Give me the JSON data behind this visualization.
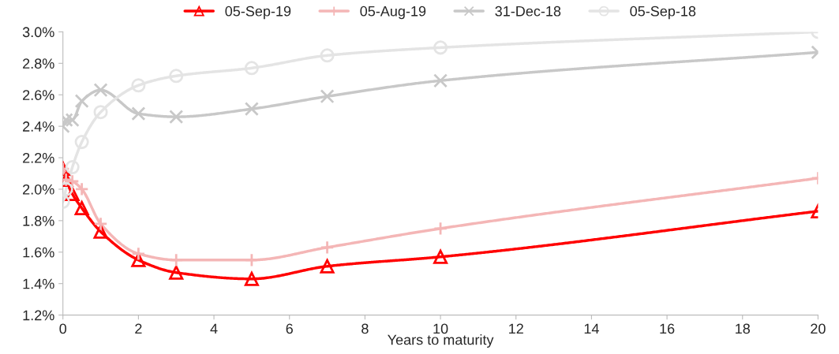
{
  "chart_data": {
    "type": "line",
    "xlabel": "Years to maturity",
    "legend": "top",
    "grid": false,
    "xlim": [
      0,
      20
    ],
    "xticks": [
      0,
      2,
      4,
      6,
      8,
      10,
      12,
      14,
      16,
      18,
      20
    ],
    "ylim": [
      1.2,
      3.0
    ],
    "yticks": [
      {
        "value": 1.2,
        "label": "1.2%"
      },
      {
        "value": 1.4,
        "label": "1.4%"
      },
      {
        "value": 1.6,
        "label": "1.6%"
      },
      {
        "value": 1.8,
        "label": "1.8%"
      },
      {
        "value": 2.0,
        "label": "2.0%"
      },
      {
        "value": 2.2,
        "label": "2.2%"
      },
      {
        "value": 2.4,
        "label": "2.4%"
      },
      {
        "value": 2.6,
        "label": "2.6%"
      },
      {
        "value": 2.8,
        "label": "2.8%"
      },
      {
        "value": 3.0,
        "label": "3.0%"
      }
    ],
    "x": [
      0,
      0.083,
      0.25,
      0.5,
      1,
      2,
      3,
      5,
      7,
      10,
      20
    ],
    "series": [
      {
        "name": "05-Sep-19",
        "color": "#ff0000",
        "marker": "triangle",
        "values": [
          2.13,
          2.06,
          1.97,
          1.88,
          1.73,
          1.55,
          1.47,
          1.43,
          1.51,
          1.57,
          1.86
        ]
      },
      {
        "name": "05-Aug-19",
        "color": "#f4b6b6",
        "marker": "cross",
        "values": [
          2.13,
          2.06,
          2.05,
          2.0,
          1.78,
          1.59,
          1.55,
          1.55,
          1.63,
          1.75,
          2.07
        ]
      },
      {
        "name": "31-Dec-18",
        "color": "#c8c8c8",
        "marker": "x",
        "values": [
          2.4,
          2.44,
          2.44,
          2.56,
          2.63,
          2.48,
          2.46,
          2.51,
          2.59,
          2.69,
          2.87
        ]
      },
      {
        "name": "05-Sep-18",
        "color": "#e4e4e4",
        "marker": "circle",
        "values": [
          1.92,
          2.0,
          2.14,
          2.3,
          2.49,
          2.66,
          2.72,
          2.77,
          2.85,
          2.9,
          3.0
        ]
      }
    ]
  }
}
